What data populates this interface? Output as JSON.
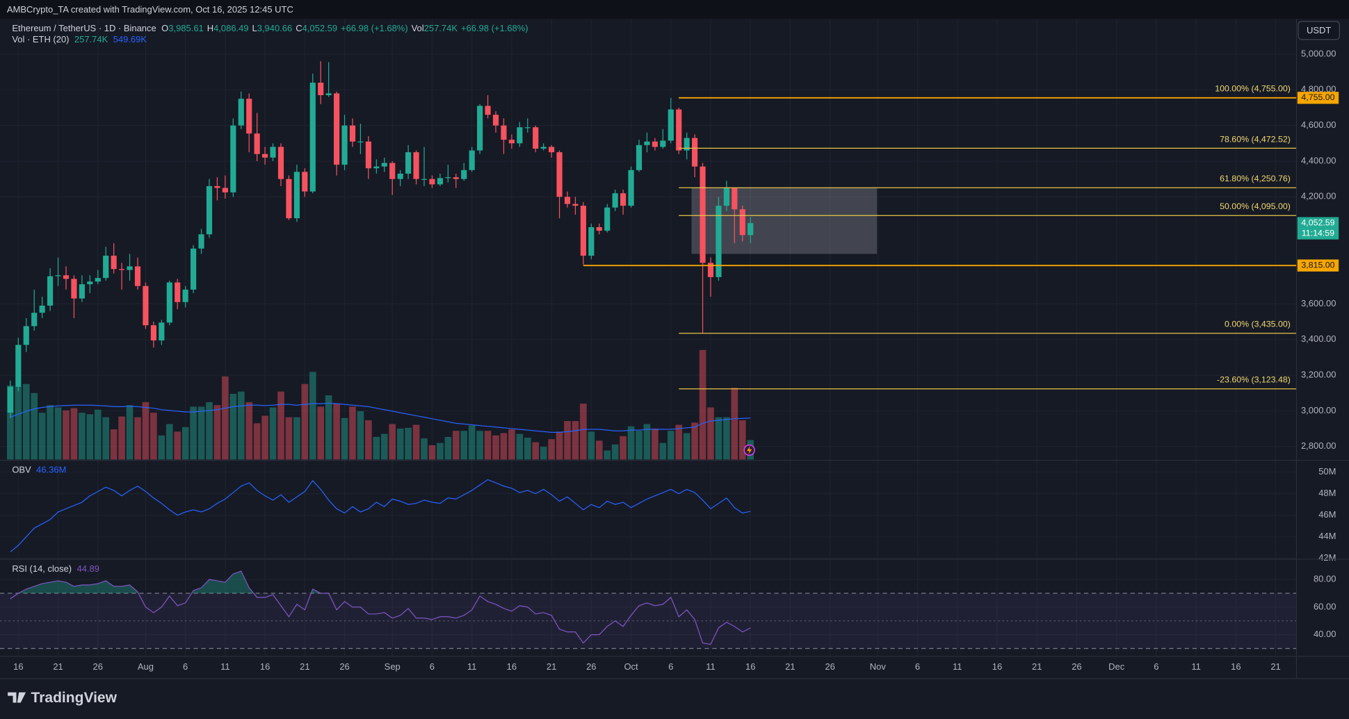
{
  "header": {
    "credit": "AMBCrypto_TA created with TradingView.com, Oct 16, 2025 12:45 UTC",
    "currency": "USDT",
    "brand": "TradingView",
    "ohlc": [
      {
        "key": "O",
        "value": "3,985.61"
      },
      {
        "key": "H",
        "value": "4,086.49"
      },
      {
        "key": "L",
        "value": "3,940.66"
      },
      {
        "key": "C",
        "value": "4,052.59"
      }
    ],
    "change": "+66.98 (+1.68%)",
    "volume_key": "Vol",
    "volume_value": "257.74K",
    "volume_change": "+66.98 (+1.68%)"
  },
  "chart_data": [
    {
      "type": "candlestick",
      "title": "Ethereum / TetherUS · 1D · Binance",
      "open": [
        2990,
        3135,
        3370,
        3475,
        3550,
        3590,
        3755,
        3760,
        3740,
        3630,
        3710,
        3725,
        3745,
        3870,
        3795,
        3790,
        3810,
        3700,
        3480,
        3395,
        3495,
        3720,
        3610,
        3680,
        3910,
        3990,
        4260,
        4250,
        4225,
        4600,
        4750,
        4555,
        4440,
        4420,
        4480,
        4300,
        4080,
        4340,
        4230,
        4840,
        4770,
        4780,
        4380,
        4600,
        4510,
        4510,
        4360,
        4370,
        4390,
        4300,
        4330,
        4450,
        4300,
        4300,
        4270,
        4305,
        4310,
        4300,
        4350,
        4460,
        4710,
        4660,
        4600,
        4520,
        4500,
        4590,
        4590,
        4470,
        4480,
        4450,
        4200,
        4160,
        4150,
        3870,
        4030,
        4010,
        4140,
        4220,
        4150,
        4350,
        4490,
        4510,
        4480,
        4515,
        4690,
        4460,
        4530,
        4370,
        3830,
        3750,
        4150,
        4250,
        4130,
        3985.61
      ],
      "high": [
        3170,
        3410,
        3520,
        3680,
        3640,
        3800,
        3860,
        3810,
        3760,
        3760,
        3760,
        3790,
        3920,
        3940,
        3830,
        3880,
        3860,
        3720,
        3500,
        3510,
        3730,
        3740,
        3700,
        3930,
        4020,
        4300,
        4310,
        4320,
        4640,
        4790,
        4780,
        4670,
        4480,
        4500,
        4500,
        4320,
        4380,
        4360,
        4890,
        4960,
        4955,
        4790,
        4660,
        4640,
        4610,
        4540,
        4410,
        4420,
        4400,
        4350,
        4490,
        4460,
        4480,
        4320,
        4330,
        4380,
        4330,
        4390,
        4480,
        4720,
        4770,
        4680,
        4640,
        4550,
        4620,
        4640,
        4600,
        4500,
        4490,
        4460,
        4230,
        4200,
        4170,
        4050,
        4050,
        4160,
        4240,
        4240,
        4370,
        4520,
        4560,
        4530,
        4580,
        4755,
        4700,
        4560,
        4550,
        4390,
        3860,
        4200,
        4290,
        4250,
        4150,
        4086.49
      ],
      "low": [
        2960,
        3110,
        3330,
        3450,
        3520,
        3560,
        3700,
        3680,
        3520,
        3610,
        3660,
        3710,
        3730,
        3770,
        3680,
        3730,
        3680,
        3460,
        3355,
        3370,
        3480,
        3570,
        3580,
        3660,
        3880,
        3970,
        4180,
        4190,
        4200,
        4580,
        4450,
        4400,
        4380,
        4400,
        4260,
        4070,
        4060,
        4200,
        4220,
        4720,
        4760,
        4320,
        4350,
        4480,
        4440,
        4300,
        4330,
        4340,
        4210,
        4260,
        4300,
        4270,
        4260,
        4250,
        4260,
        4280,
        4250,
        4290,
        4340,
        4440,
        4640,
        4560,
        4440,
        4470,
        4480,
        4560,
        4450,
        4460,
        4420,
        4080,
        4140,
        4100,
        3820,
        3850,
        3990,
        4000,
        4120,
        4100,
        4140,
        4340,
        4450,
        4460,
        4470,
        4500,
        4440,
        4410,
        4310,
        3435,
        3640,
        3730,
        4120,
        3940,
        3950,
        3940.66
      ],
      "close": [
        3135,
        3370,
        3475,
        3550,
        3590,
        3755,
        3760,
        3740,
        3630,
        3710,
        3725,
        3745,
        3870,
        3795,
        3790,
        3810,
        3700,
        3480,
        3395,
        3495,
        3720,
        3610,
        3680,
        3910,
        3990,
        4260,
        4250,
        4225,
        4600,
        4750,
        4555,
        4440,
        4420,
        4480,
        4300,
        4080,
        4340,
        4230,
        4840,
        4770,
        4780,
        4380,
        4600,
        4510,
        4510,
        4360,
        4370,
        4390,
        4300,
        4330,
        4450,
        4300,
        4300,
        4270,
        4305,
        4310,
        4300,
        4350,
        4460,
        4710,
        4660,
        4600,
        4520,
        4500,
        4590,
        4590,
        4470,
        4480,
        4450,
        4200,
        4160,
        4150,
        3870,
        4030,
        4010,
        4140,
        4220,
        4150,
        4350,
        4490,
        4510,
        4480,
        4515,
        4690,
        4460,
        4530,
        4370,
        3830,
        3750,
        4150,
        4250,
        4130,
        3985.61,
        4052.59
      ],
      "up_color": "#22ab94",
      "down_color": "#f7525f",
      "xlim": [
        -0.5,
        161.5
      ],
      "xticks": [
        {
          "value": 1,
          "label": "16"
        },
        {
          "value": 6,
          "label": "21"
        },
        {
          "value": 11,
          "label": "26"
        },
        {
          "value": 17,
          "label": "Aug"
        },
        {
          "value": 22,
          "label": "6"
        },
        {
          "value": 27,
          "label": "11"
        },
        {
          "value": 32,
          "label": "16"
        },
        {
          "value": 37,
          "label": "21"
        },
        {
          "value": 42,
          "label": "26"
        },
        {
          "value": 48,
          "label": "Sep"
        },
        {
          "value": 53,
          "label": "6"
        },
        {
          "value": 58,
          "label": "11"
        },
        {
          "value": 63,
          "label": "16"
        },
        {
          "value": 68,
          "label": "21"
        },
        {
          "value": 73,
          "label": "26"
        },
        {
          "value": 78,
          "label": "Oct"
        },
        {
          "value": 83,
          "label": "6"
        },
        {
          "value": 88,
          "label": "11"
        },
        {
          "value": 93,
          "label": "16"
        },
        {
          "value": 98,
          "label": "21"
        },
        {
          "value": 103,
          "label": "26"
        },
        {
          "value": 109,
          "label": "Nov"
        },
        {
          "value": 114,
          "label": "6"
        },
        {
          "value": 119,
          "label": "11"
        },
        {
          "value": 124,
          "label": "16"
        },
        {
          "value": 129,
          "label": "21"
        },
        {
          "value": 134,
          "label": "26"
        },
        {
          "value": 139,
          "label": "Dec"
        },
        {
          "value": 144,
          "label": "6"
        },
        {
          "value": 149,
          "label": "11"
        },
        {
          "value": 154,
          "label": "16"
        },
        {
          "value": 159,
          "label": "21"
        }
      ],
      "ylim": [
        2727,
        5159
      ],
      "yticks": [
        {
          "value": 2800,
          "label": "2,800.00"
        },
        {
          "value": 3000,
          "label": "3,000.00"
        },
        {
          "value": 3200,
          "label": "3,200.00"
        },
        {
          "value": 3400,
          "label": "3,400.00"
        },
        {
          "value": 3600,
          "label": "3,600.00"
        },
        {
          "value": 4200,
          "label": "4,200.00"
        },
        {
          "value": 4400,
          "label": "4,400.00"
        },
        {
          "value": 4600,
          "label": "4,600.00"
        },
        {
          "value": 4800,
          "label": "4,800.00"
        },
        {
          "value": 5000,
          "label": "5,000.00"
        }
      ],
      "grid": true,
      "fib_levels": [
        {
          "value": 4755,
          "label": "100.00% (4,755.00)"
        },
        {
          "value": 4472.52,
          "label": "78.60% (4,472.52)"
        },
        {
          "value": 4250.76,
          "label": "61.80% (4,250.76)"
        },
        {
          "value": 4095,
          "label": "50.00% (4,095.00)"
        },
        {
          "value": 3435,
          "label": "0.00% (3,435.00)"
        },
        {
          "value": 3123.48,
          "label": "-23.60% (3,123.48)"
        }
      ],
      "fib_color": "#e8c547",
      "price_lines": [
        {
          "value": 4755,
          "label": "4,755.00"
        },
        {
          "value": 3815,
          "label": "3,815.00"
        }
      ],
      "price_line_color": "#f7a600",
      "zone": [
        3880,
        4250
      ],
      "last_price": {
        "value": 4052.59,
        "label": "4,052.59",
        "countdown": "11:14:59"
      }
    },
    {
      "type": "bar",
      "title": "Vol · ETH (20)",
      "legend_values": [
        "257.74K",
        "549.69K"
      ],
      "values": [
        980,
        970,
        1000,
        880,
        620,
        720,
        690,
        650,
        680,
        620,
        600,
        660,
        560,
        400,
        570,
        720,
        560,
        760,
        620,
        320,
        470,
        370,
        430,
        700,
        700,
        760,
        720,
        1100,
        870,
        900,
        760,
        480,
        580,
        690,
        900,
        560,
        560,
        1000,
        1160,
        700,
        850,
        740,
        550,
        700,
        640,
        520,
        300,
        340,
        470,
        410,
        420,
        460,
        280,
        190,
        220,
        300,
        380,
        380,
        450,
        380,
        380,
        320,
        350,
        400,
        340,
        290,
        230,
        170,
        270,
        370,
        510,
        510,
        740,
        370,
        250,
        120,
        200,
        310,
        440,
        380,
        470,
        410,
        220,
        380,
        460,
        350,
        490,
        1450,
        690,
        560,
        560,
        950,
        520,
        257.74
      ],
      "ma": {
        "color": "#2962ff",
        "values": [
          560,
          600,
          640,
          670,
          690,
          700,
          710,
          715,
          720,
          720,
          720,
          715,
          710,
          700,
          700,
          705,
          700,
          690,
          680,
          660,
          650,
          640,
          630,
          630,
          640,
          650,
          660,
          680,
          700,
          710,
          720,
          720,
          715,
          720,
          730,
          730,
          720,
          730,
          740,
          740,
          745,
          740,
          730,
          720,
          710,
          700,
          680,
          660,
          640,
          620,
          600,
          580,
          560,
          540,
          520,
          500,
          480,
          470,
          460,
          450,
          440,
          430,
          420,
          410,
          400,
          390,
          380,
          370,
          360,
          360,
          370,
          380,
          400,
          400,
          400,
          390,
          380,
          380,
          390,
          390,
          400,
          400,
          400,
          400,
          410,
          420,
          430,
          480,
          510,
          520,
          530,
          540,
          545,
          549.69
        ]
      },
      "ylim": [
        0,
        1500
      ]
    },
    {
      "type": "line",
      "title": "OBV",
      "legend_value": "46.36M",
      "color": "#2962ff",
      "values": [
        42.6,
        43.2,
        44.0,
        44.8,
        45.2,
        45.6,
        46.3,
        46.6,
        46.9,
        47.2,
        47.8,
        48.2,
        48.6,
        48.3,
        47.8,
        48.3,
        48.7,
        48.2,
        47.6,
        47.1,
        46.5,
        46.0,
        46.3,
        46.5,
        46.3,
        46.6,
        47.1,
        47.5,
        48.1,
        48.7,
        49.0,
        48.3,
        47.8,
        47.4,
        47.9,
        47.2,
        47.7,
        48.2,
        49.2,
        48.4,
        47.4,
        46.6,
        46.2,
        46.8,
        46.3,
        46.6,
        47.2,
        46.8,
        47.5,
        47.3,
        47.0,
        47.1,
        47.4,
        47.2,
        47.1,
        47.6,
        47.5,
        47.9,
        48.3,
        48.8,
        49.3,
        49.0,
        48.7,
        48.5,
        48.1,
        48.3,
        48.0,
        48.4,
        47.9,
        47.3,
        47.7,
        47.1,
        46.5,
        47.0,
        46.7,
        47.3,
        47.0,
        47.2,
        46.7,
        47.1,
        47.5,
        47.8,
        48.1,
        48.4,
        48.0,
        48.4,
        48.1,
        47.4,
        46.6,
        47.1,
        47.6,
        46.7,
        46.2,
        46.36
      ],
      "ylim": [
        42,
        51
      ],
      "yticks": [
        {
          "value": 42,
          "label": "42M"
        },
        {
          "value": 44,
          "label": "44M"
        },
        {
          "value": 46,
          "label": "46M"
        },
        {
          "value": 48,
          "label": "48M"
        },
        {
          "value": 50,
          "label": "50M"
        }
      ]
    },
    {
      "type": "line",
      "title": "RSI (14, close)",
      "legend_value": "44.89",
      "color": "#7e57c2",
      "values": [
        66,
        70,
        73,
        75,
        77,
        78,
        79,
        78,
        75,
        76,
        76,
        77,
        79,
        75,
        75,
        76,
        71,
        60,
        56,
        60,
        68,
        61,
        63,
        72,
        74,
        80,
        79,
        78,
        84,
        86,
        74,
        67,
        67,
        69,
        61,
        53,
        62,
        58,
        73,
        70,
        70,
        58,
        64,
        60,
        60,
        55,
        55,
        56,
        52,
        54,
        59,
        52,
        52,
        51,
        53,
        53,
        52,
        54,
        58,
        68,
        64,
        62,
        59,
        57,
        61,
        60,
        55,
        56,
        54,
        44,
        42,
        42,
        34,
        40,
        40,
        46,
        50,
        46,
        54,
        61,
        63,
        61,
        62,
        67,
        53,
        58,
        51,
        34,
        33,
        45,
        49,
        46,
        42,
        44.89
      ],
      "ylim": [
        25,
        94
      ],
      "yticks": [
        {
          "value": 40,
          "label": "40.00"
        },
        {
          "value": 60,
          "label": "60.00"
        },
        {
          "value": 80,
          "label": "80.00"
        }
      ],
      "band": [
        30,
        70
      ],
      "midline": 50,
      "overbought_color": "#22ab94"
    }
  ]
}
